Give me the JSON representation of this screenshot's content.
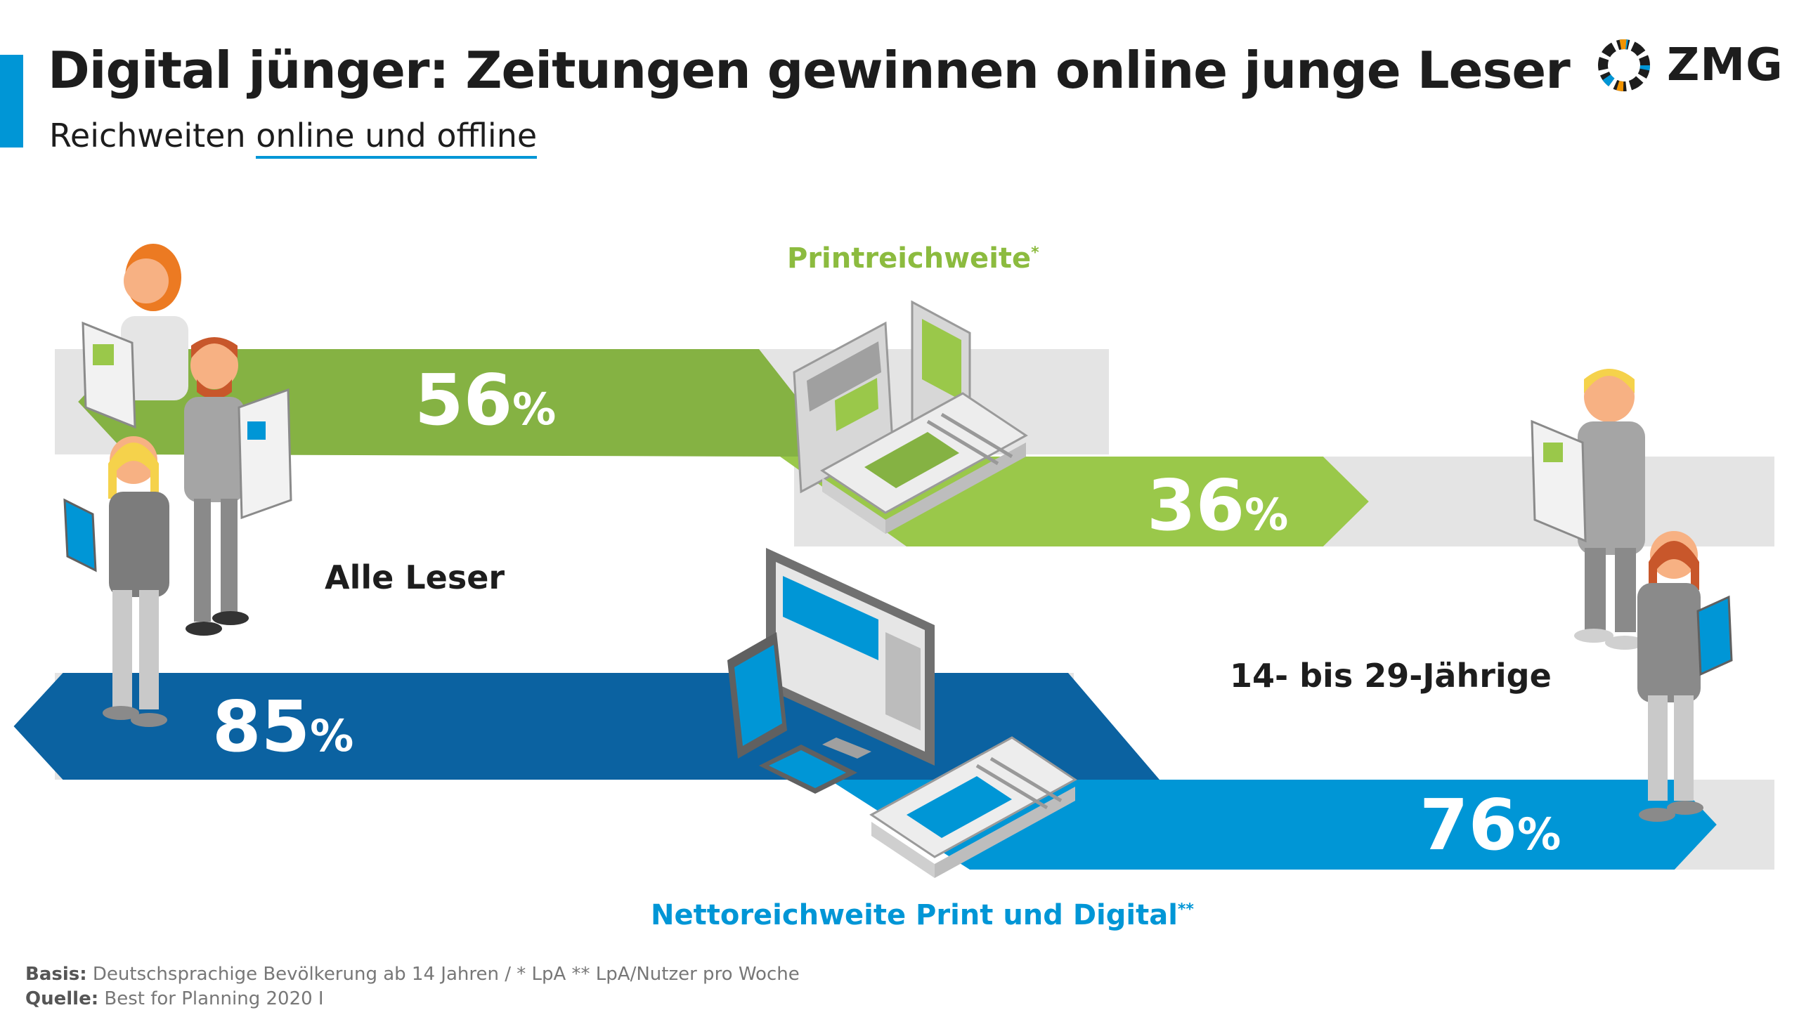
{
  "header": {
    "title": "Digital jünger: Zeitungen gewinnen online junge Leser",
    "subtitle_prefix": "Reichweiten ",
    "subtitle_underlined": "online und offline"
  },
  "logo": {
    "text": "ZMG",
    "icon": "zmg-ring-logo"
  },
  "colors": {
    "accent": "#0096d6",
    "print_dark": "#85b243",
    "print_light": "#9ac84a",
    "net_dark": "#0b62a1",
    "net_light": "#0096d6",
    "track": "#e4e4e4"
  },
  "chart_data": {
    "type": "bar",
    "categories": [
      "Alle Leser",
      "14- bis 29-Jährige"
    ],
    "series": [
      {
        "name": "Printreichweite",
        "footnote_marker": "*",
        "values": [
          56,
          36
        ],
        "unit": "%"
      },
      {
        "name": "Nettoreichweite Print und Digital",
        "footnote_marker": "**",
        "values": [
          85,
          76
        ],
        "unit": "%"
      }
    ],
    "value_labels": [
      "56",
      "36",
      "85",
      "76"
    ],
    "ylim": [
      0,
      100
    ]
  },
  "footnotes": {
    "basis_label": "Basis:",
    "basis_text": " Deutschsprachige Bevölkerung ab 14 Jahren / * LpA ** LpA/Nutzer pro Woche",
    "source_label": "Quelle:",
    "source_text": " Best for Planning 2020 I"
  }
}
